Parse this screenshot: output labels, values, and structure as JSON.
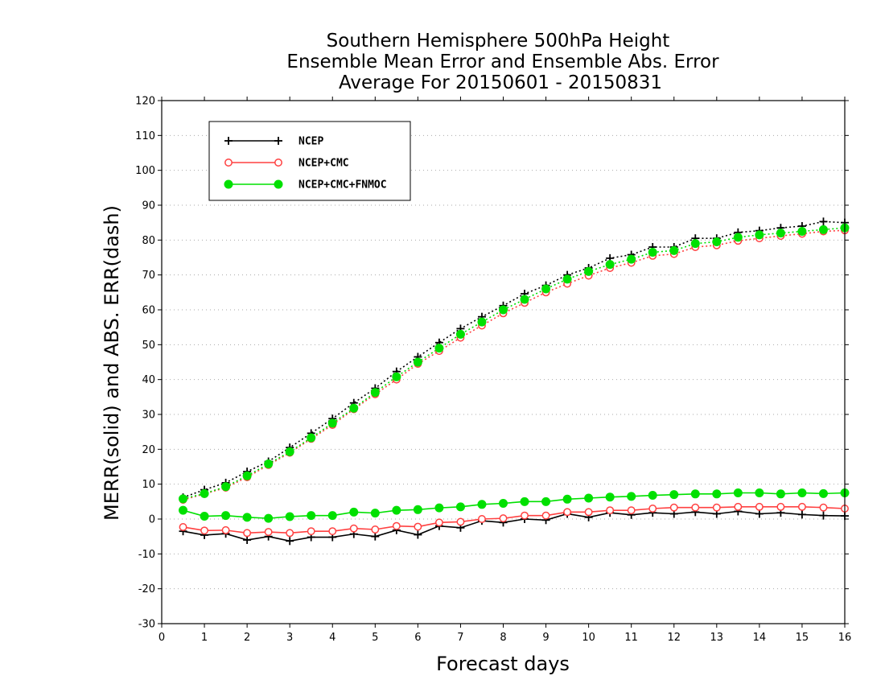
{
  "chart_data": {
    "type": "line",
    "title": [
      "Southern Hemisphere 500hPa Height",
      "Ensemble Mean Error and Ensemble Abs. Error",
      "Average For 20150601 - 20150831"
    ],
    "xlabel": "Forecast days",
    "ylabel": "MERR(solid) and ABS. ERR(dash)",
    "xlim": [
      0,
      16
    ],
    "ylim": [
      -30,
      120
    ],
    "xticks": [
      0,
      1,
      2,
      3,
      4,
      5,
      6,
      7,
      8,
      9,
      10,
      11,
      12,
      13,
      14,
      15,
      16
    ],
    "yticks": [
      -30,
      -20,
      -10,
      0,
      10,
      20,
      30,
      40,
      50,
      60,
      70,
      80,
      90,
      100,
      110,
      120
    ],
    "grid": true,
    "legend_position": "top-left",
    "x": [
      0.5,
      1,
      1.5,
      2,
      2.5,
      3,
      3.5,
      4,
      4.5,
      5,
      5.5,
      6,
      6.5,
      7,
      7.5,
      8,
      8.5,
      9,
      9.5,
      10,
      10.5,
      11,
      11.5,
      12,
      12.5,
      13,
      13.5,
      14,
      14.5,
      15,
      15.5,
      16
    ],
    "series": [
      {
        "name": "NCEP",
        "color": "#000000",
        "marker": "plus",
        "merr": [
          -3.5,
          -4.6,
          -4.2,
          -6.0,
          -5.0,
          -6.3,
          -5.2,
          -5.2,
          -4.3,
          -5.0,
          -3.2,
          -4.5,
          -2.0,
          -2.5,
          -0.5,
          -1.0,
          0.0,
          -0.3,
          1.5,
          0.5,
          1.8,
          1.2,
          1.8,
          1.5,
          2.0,
          1.5,
          2.2,
          1.5,
          1.8,
          1.3,
          1.0,
          0.9
        ],
        "abserr": [
          6.2,
          8.4,
          10.4,
          13.6,
          16.5,
          20.5,
          24.6,
          28.8,
          33.3,
          37.5,
          42.3,
          46.5,
          50.6,
          54.6,
          58.0,
          61.2,
          64.6,
          67.0,
          70.0,
          72.0,
          74.8,
          75.8,
          78.0,
          78.0,
          80.5,
          80.5,
          82.2,
          82.7,
          83.5,
          84.0,
          85.3,
          85.0
        ]
      },
      {
        "name": "NCEP+CMC",
        "color": "#ff4040",
        "marker": "open-circle",
        "merr": [
          -2.3,
          -3.3,
          -3.2,
          -4.0,
          -3.7,
          -4.0,
          -3.5,
          -3.5,
          -2.7,
          -3.0,
          -2.0,
          -2.2,
          -1.0,
          -0.8,
          0.0,
          0.2,
          1.0,
          1.0,
          2.0,
          2.0,
          2.5,
          2.5,
          3.0,
          3.3,
          3.3,
          3.3,
          3.5,
          3.5,
          3.5,
          3.5,
          3.3,
          3.0
        ],
        "abserr": [
          5.5,
          7.2,
          9.0,
          12.0,
          15.5,
          19.0,
          23.0,
          27.0,
          31.5,
          35.8,
          40.0,
          44.5,
          48.2,
          52.0,
          55.5,
          59.0,
          62.0,
          65.0,
          67.5,
          69.8,
          72.0,
          73.5,
          75.5,
          76.0,
          78.0,
          78.5,
          79.8,
          80.5,
          81.2,
          81.8,
          82.5,
          82.8
        ]
      },
      {
        "name": "NCEP+CMC+FNMOC",
        "color": "#00e000",
        "marker": "filled-circle",
        "merr": [
          2.5,
          0.8,
          1.0,
          0.5,
          0.2,
          0.7,
          1.0,
          1.0,
          2.0,
          1.7,
          2.5,
          2.7,
          3.2,
          3.5,
          4.2,
          4.5,
          5.0,
          5.0,
          5.7,
          6.0,
          6.3,
          6.5,
          6.8,
          7.0,
          7.2,
          7.2,
          7.5,
          7.5,
          7.2,
          7.5,
          7.3,
          7.5
        ],
        "abserr": [
          5.8,
          7.3,
          9.3,
          12.4,
          15.8,
          19.3,
          23.3,
          27.5,
          31.8,
          36.3,
          40.8,
          45.0,
          49.0,
          53.0,
          56.5,
          60.0,
          63.0,
          66.0,
          68.8,
          71.0,
          73.0,
          74.5,
          76.5,
          77.0,
          79.0,
          79.5,
          80.8,
          81.5,
          82.0,
          82.5,
          83.0,
          83.5
        ]
      }
    ]
  }
}
